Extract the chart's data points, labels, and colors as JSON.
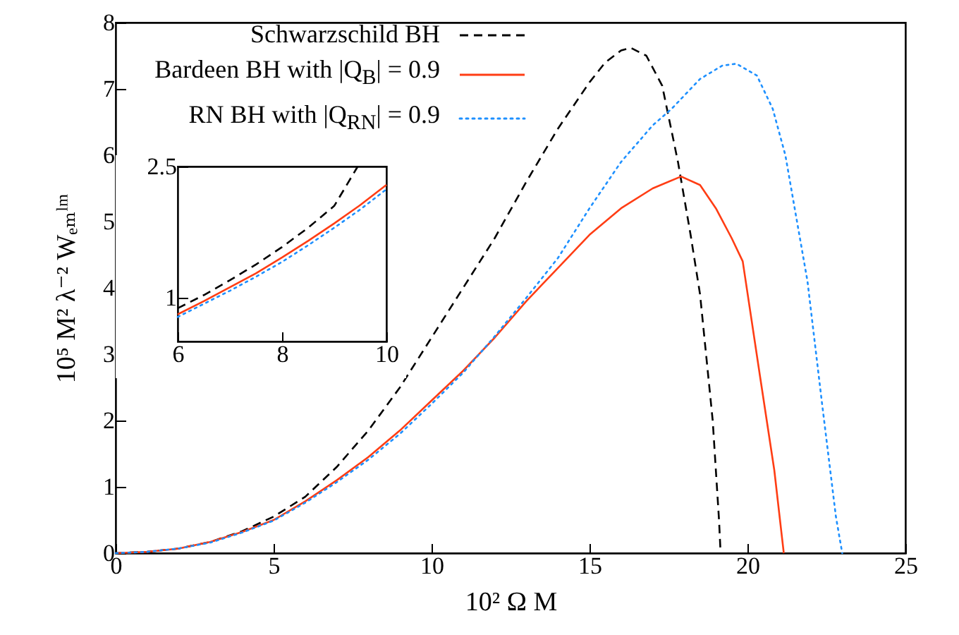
{
  "chart_data": [
    {
      "type": "line",
      "xlabel": "10² Ω M",
      "ylabel": "10⁵ M² λ⁻² Wₑₘˡᵐ",
      "xlim": [
        0,
        25
      ],
      "ylim": [
        0,
        8
      ],
      "xticks": [
        0,
        5,
        10,
        15,
        20,
        25
      ],
      "yticks": [
        0,
        1,
        2,
        3,
        4,
        5,
        6,
        7,
        8
      ],
      "legend": "top left",
      "marker": "none",
      "series": [
        {
          "name": "Schwarzschild BH",
          "color": "#000000",
          "line_style": "dashed",
          "x": [
            0,
            1,
            2,
            3,
            4,
            5,
            6,
            7,
            8,
            9,
            10,
            11,
            12,
            13,
            14,
            15,
            15.5,
            16,
            16.3,
            16.8,
            17.3,
            17.8,
            18.2,
            18.5,
            18.9,
            19.1,
            19.15
          ],
          "values": [
            0,
            0.02,
            0.07,
            0.17,
            0.33,
            0.55,
            0.85,
            1.3,
            1.85,
            2.5,
            3.25,
            4.0,
            4.75,
            5.6,
            6.4,
            7.1,
            7.4,
            7.58,
            7.62,
            7.5,
            7.05,
            5.9,
            4.8,
            3.9,
            2.0,
            0.5,
            0
          ]
        },
        {
          "name": "Bardeen BH with |Q$_{B}$| = 0.9",
          "color": "#ff3d14",
          "line_style": "solid",
          "x": [
            0,
            1,
            2,
            3,
            4,
            5,
            6,
            7,
            8,
            9,
            10,
            11,
            12,
            13,
            14,
            15,
            16,
            17,
            17.9,
            18.5,
            19,
            19.5,
            19.85,
            20.4,
            20.85,
            21.15
          ],
          "values": [
            0,
            0.02,
            0.07,
            0.17,
            0.32,
            0.5,
            0.78,
            1.1,
            1.45,
            1.85,
            2.3,
            2.75,
            3.25,
            3.8,
            4.3,
            4.8,
            5.2,
            5.5,
            5.68,
            5.55,
            5.2,
            4.75,
            4.4,
            2.66,
            1.25,
            0
          ]
        },
        {
          "name": "RN BH with |Q$_{RN}$| = 0.9",
          "color": "#1e90ff",
          "line_style": "dotted",
          "x": [
            0,
            1,
            2,
            3,
            4,
            5,
            6,
            7,
            8,
            9,
            10,
            11,
            12,
            13,
            14,
            15,
            16,
            17,
            17.6,
            18.5,
            19.2,
            19.65,
            20.3,
            20.8,
            21.2,
            21.9,
            22.35,
            22.8,
            23.0
          ],
          "values": [
            0,
            0.02,
            0.07,
            0.16,
            0.31,
            0.49,
            0.76,
            1.07,
            1.41,
            1.8,
            2.25,
            2.72,
            3.27,
            3.85,
            4.45,
            5.2,
            5.9,
            6.45,
            6.7,
            7.15,
            7.35,
            7.38,
            7.2,
            6.7,
            6.0,
            4.1,
            2.3,
            0.55,
            0
          ]
        }
      ]
    },
    {
      "type": "line",
      "xlim": [
        6,
        10
      ],
      "ylim": [
        0.5,
        2.5
      ],
      "xticks": [
        6,
        8,
        10
      ],
      "yticks": [
        1,
        2.5
      ],
      "marker": "none",
      "series": [
        {
          "color": "#000000",
          "line_style": "dashed",
          "x": [
            6,
            6.5,
            7,
            7.5,
            8,
            8.5,
            9,
            9.45
          ],
          "values": [
            0.88,
            1.03,
            1.2,
            1.38,
            1.58,
            1.8,
            2.05,
            2.5
          ]
        },
        {
          "color": "#ff3d14",
          "line_style": "solid",
          "x": [
            6,
            6.5,
            7,
            7.5,
            8,
            8.5,
            9,
            9.5,
            10
          ],
          "values": [
            0.81,
            0.96,
            1.12,
            1.28,
            1.46,
            1.65,
            1.85,
            2.06,
            2.29
          ]
        },
        {
          "color": "#1e90ff",
          "line_style": "dotted",
          "x": [
            6,
            6.5,
            7,
            7.5,
            8,
            8.5,
            9,
            9.5,
            10
          ],
          "values": [
            0.78,
            0.93,
            1.08,
            1.24,
            1.41,
            1.6,
            1.8,
            2.01,
            2.24
          ]
        }
      ]
    }
  ]
}
